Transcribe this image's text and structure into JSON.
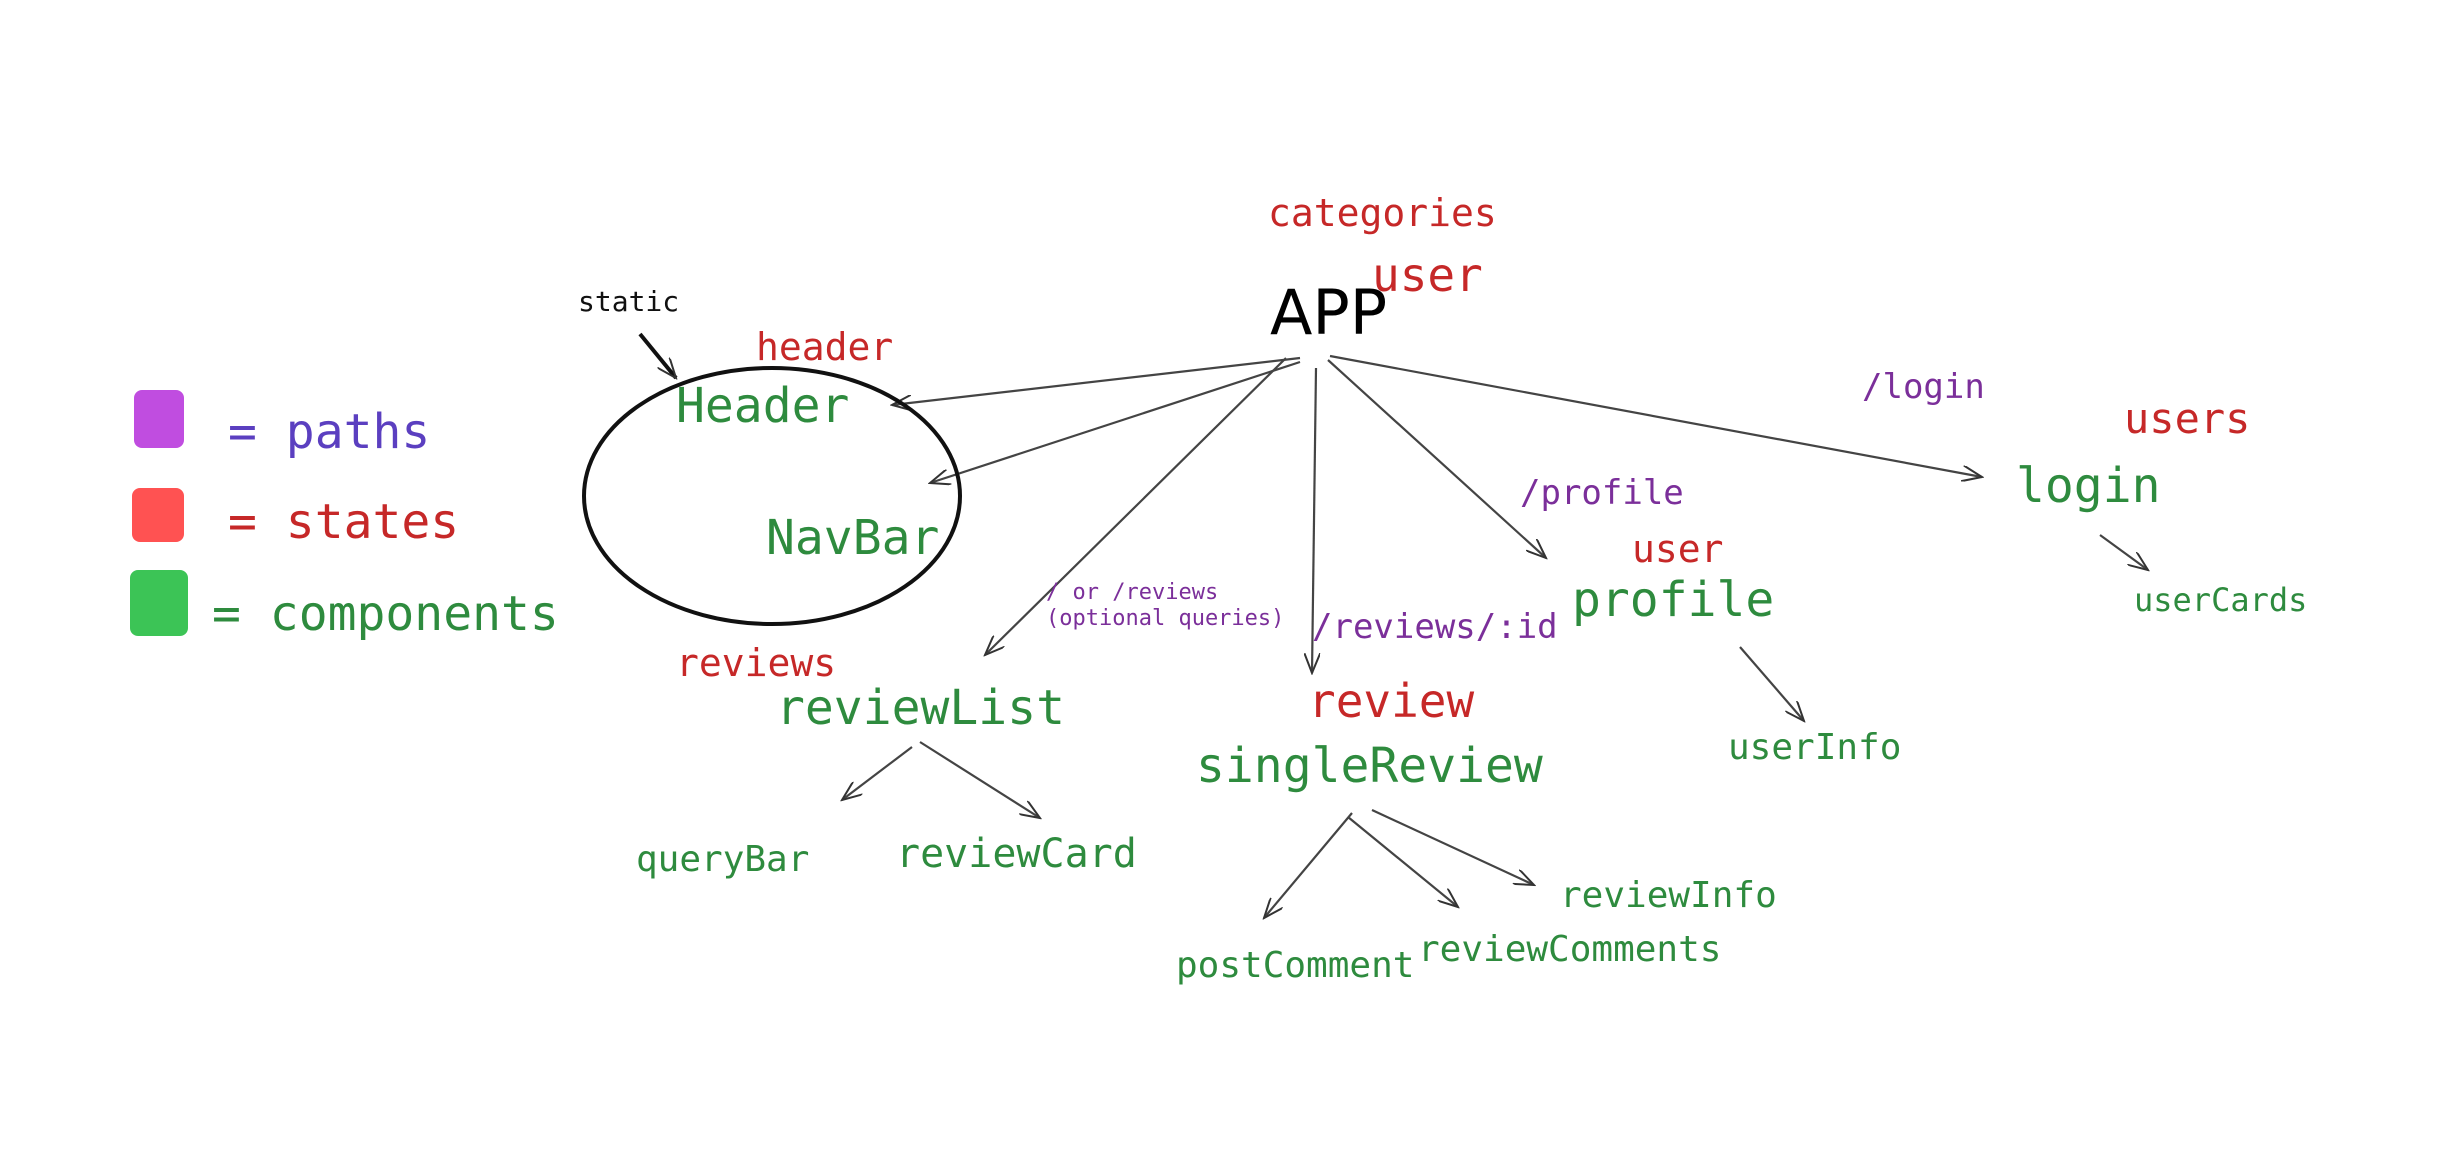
{
  "legend": {
    "paths": "= paths",
    "states": "= states",
    "components": "= components",
    "colors": {
      "paths": "#c04de0",
      "states": "#ff5252",
      "components": "#3cc456"
    }
  },
  "annotations": {
    "static": "static"
  },
  "root": {
    "label": "APP",
    "states": [
      "categories",
      "user"
    ]
  },
  "nodes": {
    "header": {
      "label": "Header",
      "state": "header"
    },
    "navbar": {
      "label": "NavBar"
    },
    "review_list": {
      "label": "reviewList",
      "state": "reviews",
      "path": "/ or /reviews",
      "path_note": "(optional queries)"
    },
    "query_bar": {
      "label": "queryBar"
    },
    "review_card": {
      "label": "reviewCard"
    },
    "single_review": {
      "label": "singleReview",
      "state": "review",
      "path": "/reviews/:id"
    },
    "post_comment": {
      "label": "postComment"
    },
    "review_comments": {
      "label": "reviewComments"
    },
    "review_info": {
      "label": "reviewInfo"
    },
    "profile": {
      "label": "profile",
      "state": "user",
      "path": "/profile"
    },
    "user_info": {
      "label": "userInfo"
    },
    "login": {
      "label": "login",
      "state": "users",
      "path": "/login"
    },
    "user_cards": {
      "label": "userCards"
    }
  }
}
